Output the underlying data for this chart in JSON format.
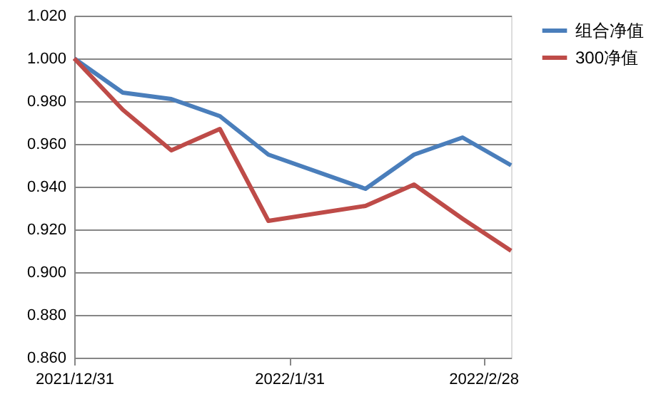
{
  "chart_data": {
    "type": "line",
    "x": [
      "2021-12-31",
      "2022-01-07",
      "2022-01-14",
      "2022-01-21",
      "2022-01-28",
      "2022-02-11",
      "2022-02-18",
      "2022-02-25",
      "2022-03-04"
    ],
    "series": [
      {
        "name": "组合净值",
        "color": "#4a7ebb",
        "values": [
          1.0,
          0.984,
          0.981,
          0.973,
          0.955,
          0.939,
          0.955,
          0.963,
          0.95
        ]
      },
      {
        "name": "300净值",
        "color": "#be4b48",
        "values": [
          1.0,
          0.976,
          0.957,
          0.967,
          0.924,
          0.931,
          0.941,
          0.925,
          0.91
        ]
      }
    ],
    "xlim": [
      "2021-12-31",
      "2022-03-04"
    ],
    "xticks": [
      {
        "value": "2021-12-31",
        "label": "2021/12/31"
      },
      {
        "value": "2022-01-31",
        "label": "2022/1/31"
      },
      {
        "value": "2022-02-28",
        "label": "2022/2/28"
      }
    ],
    "ylim": [
      0.86,
      1.02
    ],
    "yticks": [
      {
        "value": 0.86,
        "label": "0.860"
      },
      {
        "value": 0.88,
        "label": "0.880"
      },
      {
        "value": 0.9,
        "label": "0.900"
      },
      {
        "value": 0.92,
        "label": "0.920"
      },
      {
        "value": 0.94,
        "label": "0.940"
      },
      {
        "value": 0.96,
        "label": "0.960"
      },
      {
        "value": 0.98,
        "label": "0.980"
      },
      {
        "value": 1.0,
        "label": "1.000"
      },
      {
        "value": 1.02,
        "label": "1.020"
      }
    ],
    "grid": "y",
    "legend": "right",
    "marker": "none",
    "line_style": "solid"
  }
}
